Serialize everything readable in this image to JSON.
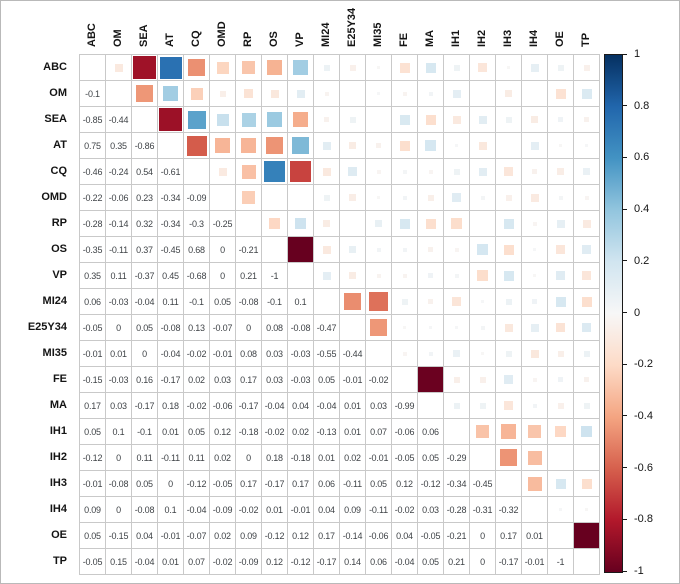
{
  "chart_data": {
    "type": "heatmap",
    "subtype": "correlation-matrix",
    "title": "",
    "layout": {
      "lower_triangle": "numbers",
      "upper_triangle": "squares",
      "diagonal": "blank",
      "grid": true,
      "colorbar_position": "right"
    },
    "variables": [
      "ABC",
      "OM",
      "SEA",
      "AT",
      "CQ",
      "OMD",
      "RP",
      "OS",
      "VP",
      "MI24",
      "E25Y34",
      "MI35",
      "FE",
      "MA",
      "IH1",
      "IH2",
      "IH3",
      "IH4",
      "OE",
      "TP"
    ],
    "lower_triangle": [
      [],
      [
        -0.1
      ],
      [
        -0.85,
        -0.44
      ],
      [
        0.75,
        0.35,
        -0.86
      ],
      [
        -0.46,
        -0.24,
        0.54,
        -0.61
      ],
      [
        -0.22,
        -0.06,
        0.23,
        -0.34,
        -0.09
      ],
      [
        -0.28,
        -0.14,
        0.32,
        -0.34,
        -0.3,
        -0.25
      ],
      [
        -0.35,
        -0.11,
        0.37,
        -0.45,
        0.68,
        0,
        -0.21
      ],
      [
        0.35,
        0.11,
        -0.37,
        0.45,
        -0.68,
        0,
        0.21,
        -1
      ],
      [
        0.06,
        -0.03,
        -0.04,
        0.11,
        -0.1,
        0.05,
        -0.08,
        -0.1,
        0.1
      ],
      [
        -0.05,
        0,
        0.05,
        -0.08,
        0.13,
        -0.07,
        0,
        0.08,
        -0.08,
        -0.47
      ],
      [
        -0.01,
        0.01,
        0,
        -0.04,
        -0.02,
        -0.01,
        0.08,
        0.03,
        -0.03,
        -0.55,
        -0.44
      ],
      [
        -0.15,
        -0.03,
        0.16,
        -0.17,
        0.02,
        0.03,
        0.17,
        0.03,
        -0.03,
        0.05,
        -0.01,
        -0.02
      ],
      [
        0.17,
        0.03,
        -0.17,
        0.18,
        -0.02,
        -0.06,
        -0.17,
        -0.04,
        0.04,
        -0.04,
        0.01,
        0.03,
        -0.99
      ],
      [
        0.05,
        0.1,
        -0.1,
        0.01,
        0.05,
        0.12,
        -0.18,
        -0.02,
        0.02,
        -0.13,
        0.01,
        0.07,
        -0.06,
        0.06
      ],
      [
        -0.12,
        0,
        0.11,
        -0.11,
        0.11,
        0.02,
        0,
        0.18,
        -0.18,
        0.01,
        0.02,
        -0.01,
        -0.05,
        0.05,
        -0.29
      ],
      [
        -0.01,
        -0.08,
        0.05,
        0,
        -0.12,
        -0.05,
        0.17,
        -0.17,
        0.17,
        0.06,
        -0.11,
        0.05,
        0.12,
        -0.12,
        -0.34,
        -0.45
      ],
      [
        0.09,
        0,
        -0.08,
        0.1,
        -0.04,
        -0.09,
        -0.02,
        0.01,
        -0.01,
        0.04,
        0.09,
        -0.11,
        -0.02,
        0.03,
        -0.28,
        -0.31,
        -0.32
      ],
      [
        0.05,
        -0.15,
        0.04,
        -0.01,
        -0.07,
        0.02,
        0.09,
        -0.12,
        0.12,
        0.17,
        -0.14,
        -0.06,
        0.04,
        -0.05,
        -0.21,
        0,
        0.17,
        0.01
      ],
      [
        -0.05,
        0.15,
        -0.04,
        0.01,
        0.07,
        -0.02,
        -0.09,
        0.12,
        -0.12,
        -0.17,
        0.14,
        0.06,
        -0.04,
        0.05,
        0.21,
        0,
        -0.17,
        -0.01,
        -1
      ]
    ],
    "colorbar": {
      "range": [
        -1,
        1
      ],
      "tick_labels": [
        "1",
        "0.8",
        "0.6",
        "0.4",
        "0.2",
        "0",
        "-0.2",
        "-0.4",
        "-0.6",
        "-0.8",
        "-1"
      ]
    },
    "palette_stops_neg_to_pos": [
      "#67001f",
      "#b2182b",
      "#d6604d",
      "#f4a582",
      "#fddbc7",
      "#f7f7f7",
      "#d1e5f0",
      "#92c5de",
      "#4393c3",
      "#2166ac",
      "#053061"
    ]
  },
  "colors": {
    "grid_line": "#c9c9c9",
    "number_text": "#3f4347",
    "label_text": "#141414",
    "background": "#ffffff"
  }
}
